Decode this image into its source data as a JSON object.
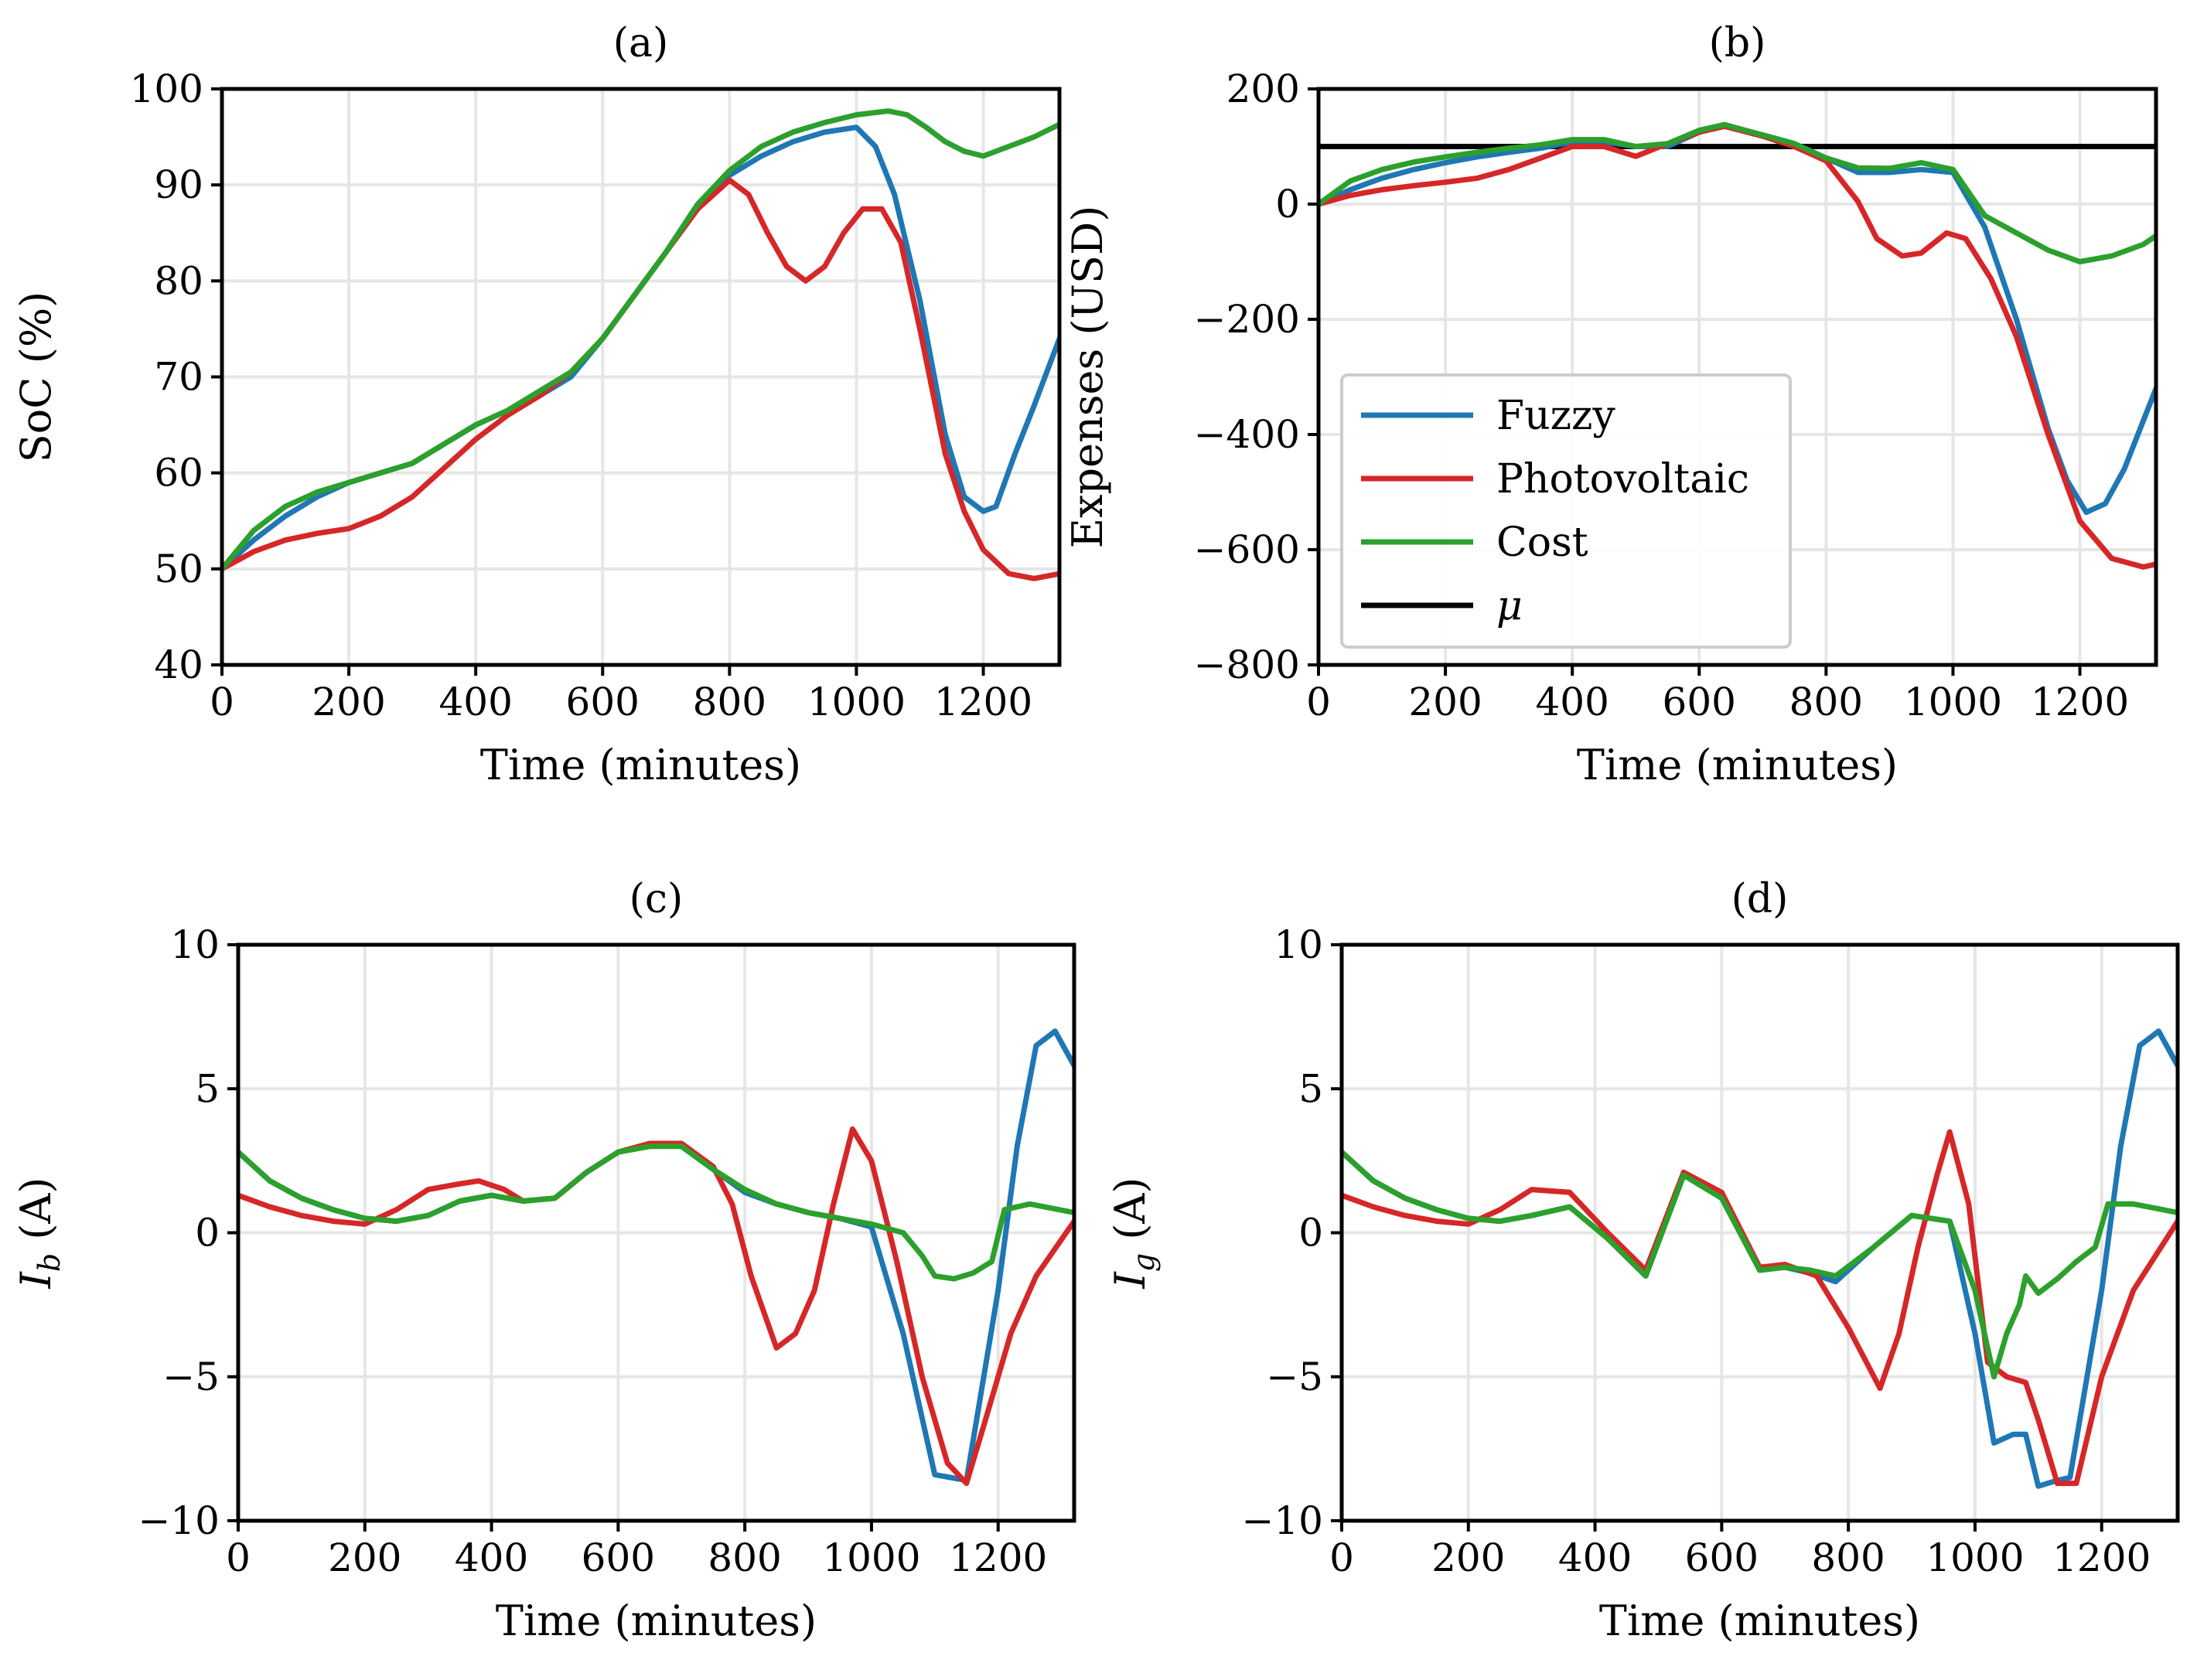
{
  "colors": {
    "fuzzy": "#1f77b4",
    "photovoltaic": "#d62728",
    "cost": "#2ca02c",
    "mu": "#000000",
    "grid": "#e6e6e6"
  },
  "chart_data": [
    {
      "id": "a",
      "type": "line",
      "title": "(a)",
      "xlabel": "Time (minutes)",
      "ylabel": "SoC (%)",
      "xlim": [
        0,
        1320
      ],
      "ylim": [
        40,
        100
      ],
      "xticks": [
        0,
        200,
        400,
        600,
        800,
        1000,
        1200
      ],
      "yticks": [
        40,
        50,
        60,
        70,
        80,
        90,
        100
      ],
      "xtick_labels": [
        "0",
        "200",
        "400",
        "600",
        "800",
        "1000",
        "1200"
      ],
      "ytick_labels": [
        "40",
        "50",
        "60",
        "70",
        "80",
        "90",
        "100"
      ],
      "grid": true,
      "series": [
        {
          "name": "Fuzzy",
          "color_key": "fuzzy",
          "x": [
            0,
            50,
            100,
            150,
            200,
            250,
            300,
            350,
            400,
            450,
            500,
            550,
            600,
            650,
            700,
            750,
            800,
            850,
            900,
            950,
            1000,
            1030,
            1060,
            1100,
            1140,
            1170,
            1200,
            1220,
            1250,
            1280,
            1320
          ],
          "y": [
            50,
            53,
            55.5,
            57.5,
            59,
            60,
            61,
            63,
            65,
            66.5,
            68,
            70,
            74,
            78.5,
            83,
            88,
            91,
            93,
            94.5,
            95.5,
            96,
            94,
            89,
            78,
            64,
            57.5,
            56,
            56.5,
            62,
            67,
            74
          ]
        },
        {
          "name": "Photovoltaic",
          "color_key": "photovoltaic",
          "x": [
            0,
            50,
            100,
            150,
            200,
            250,
            300,
            350,
            400,
            450,
            500,
            550,
            600,
            650,
            700,
            750,
            800,
            830,
            860,
            890,
            920,
            950,
            980,
            1010,
            1040,
            1070,
            1100,
            1140,
            1170,
            1200,
            1240,
            1280,
            1320
          ],
          "y": [
            50,
            51.8,
            53,
            53.7,
            54.2,
            55.5,
            57.5,
            60.5,
            63.5,
            66,
            68,
            70.5,
            74,
            78.5,
            83,
            87.5,
            90.5,
            89,
            85,
            81.5,
            80,
            81.5,
            85,
            87.5,
            87.5,
            84,
            75,
            62,
            56,
            52,
            49.5,
            49,
            49.5
          ]
        },
        {
          "name": "Cost",
          "color_key": "cost",
          "x": [
            0,
            50,
            100,
            150,
            200,
            250,
            300,
            350,
            400,
            450,
            500,
            550,
            600,
            650,
            700,
            750,
            800,
            850,
            900,
            950,
            1000,
            1050,
            1080,
            1110,
            1140,
            1170,
            1200,
            1240,
            1280,
            1320
          ],
          "y": [
            50,
            54,
            56.5,
            58,
            59,
            60,
            61,
            63,
            65,
            66.5,
            68.5,
            70.5,
            74,
            78.5,
            83,
            88,
            91.5,
            94,
            95.5,
            96.5,
            97.3,
            97.7,
            97.3,
            96,
            94.5,
            93.5,
            93,
            94,
            95,
            96.3
          ]
        }
      ]
    },
    {
      "id": "b",
      "type": "line",
      "title": "(b)",
      "xlabel": "Time (minutes)",
      "ylabel": "Expenses (USD)",
      "xlim": [
        0,
        1320
      ],
      "ylim": [
        -800,
        200
      ],
      "xticks": [
        0,
        200,
        400,
        600,
        800,
        1000,
        1200
      ],
      "yticks": [
        -800,
        -600,
        -400,
        -200,
        0,
        200
      ],
      "xtick_labels": [
        "0",
        "200",
        "400",
        "600",
        "800",
        "1000",
        "1200"
      ],
      "ytick_labels": [
        "−800",
        "−600",
        "−400",
        "−200",
        "0",
        "200"
      ],
      "grid": true,
      "legend": {
        "location": "center-left",
        "entries": [
          {
            "label": "Fuzzy",
            "color_key": "fuzzy"
          },
          {
            "label": "Photovoltaic",
            "color_key": "photovoltaic"
          },
          {
            "label": "Cost",
            "color_key": "cost"
          },
          {
            "label": "μ",
            "color_key": "mu"
          }
        ]
      },
      "hline": {
        "name": "μ",
        "y": 100,
        "color_key": "mu"
      },
      "series": [
        {
          "name": "Fuzzy",
          "color_key": "fuzzy",
          "x": [
            0,
            50,
            100,
            150,
            200,
            250,
            300,
            350,
            400,
            450,
            500,
            550,
            600,
            640,
            700,
            750,
            800,
            850,
            900,
            950,
            1000,
            1050,
            1100,
            1150,
            1180,
            1210,
            1240,
            1270,
            1320
          ],
          "y": [
            0,
            25,
            45,
            60,
            72,
            82,
            90,
            97,
            108,
            108,
            100,
            100,
            125,
            135,
            120,
            105,
            80,
            55,
            55,
            60,
            55,
            -40,
            -200,
            -390,
            -480,
            -535,
            -520,
            -460,
            -320
          ]
        },
        {
          "name": "Photovoltaic",
          "color_key": "photovoltaic",
          "x": [
            0,
            50,
            100,
            150,
            200,
            250,
            300,
            350,
            400,
            450,
            500,
            550,
            600,
            640,
            700,
            750,
            800,
            850,
            880,
            920,
            950,
            990,
            1020,
            1060,
            1100,
            1150,
            1200,
            1250,
            1300,
            1320
          ],
          "y": [
            0,
            15,
            25,
            32,
            38,
            45,
            60,
            80,
            100,
            100,
            83,
            105,
            125,
            135,
            118,
            100,
            75,
            5,
            -60,
            -90,
            -85,
            -50,
            -60,
            -130,
            -230,
            -400,
            -550,
            -615,
            -630,
            -625
          ]
        },
        {
          "name": "Cost",
          "color_key": "cost",
          "x": [
            0,
            50,
            100,
            150,
            200,
            250,
            300,
            350,
            400,
            450,
            500,
            550,
            600,
            640,
            700,
            750,
            800,
            850,
            900,
            950,
            1000,
            1050,
            1100,
            1150,
            1200,
            1250,
            1300,
            1320
          ],
          "y": [
            0,
            40,
            60,
            73,
            82,
            90,
            97,
            103,
            112,
            112,
            100,
            105,
            128,
            138,
            120,
            105,
            80,
            63,
            62,
            72,
            60,
            -20,
            -50,
            -80,
            -100,
            -90,
            -70,
            -55
          ]
        }
      ]
    },
    {
      "id": "c",
      "type": "line",
      "title": "(c)",
      "xlabel": "Time (minutes)",
      "ylabel_var": "I",
      "ylabel_sub": "b",
      "ylabel_unit": " (A)",
      "xlim": [
        0,
        1320
      ],
      "ylim": [
        -10,
        10
      ],
      "xticks": [
        0,
        200,
        400,
        600,
        800,
        1000,
        1200
      ],
      "yticks": [
        -10,
        -5,
        0,
        5,
        10
      ],
      "xtick_labels": [
        "0",
        "200",
        "400",
        "600",
        "800",
        "1000",
        "1200"
      ],
      "ytick_labels": [
        "−10",
        "−5",
        "0",
        "5",
        "10"
      ],
      "grid": true,
      "series": [
        {
          "name": "Fuzzy",
          "color_key": "fuzzy",
          "x": [
            0,
            50,
            100,
            150,
            200,
            250,
            300,
            350,
            400,
            450,
            500,
            550,
            600,
            650,
            700,
            750,
            800,
            850,
            900,
            950,
            1000,
            1050,
            1100,
            1150,
            1200,
            1230,
            1260,
            1290,
            1320
          ],
          "y": [
            2.8,
            1.8,
            1.2,
            0.8,
            0.5,
            0.4,
            0.6,
            1.1,
            1.3,
            1.1,
            1.2,
            2.1,
            2.8,
            3.1,
            3.0,
            2.2,
            1.4,
            1.0,
            0.7,
            0.5,
            0.2,
            -3.5,
            -8.4,
            -8.6,
            -2.0,
            3.0,
            6.5,
            7.0,
            5.8
          ]
        },
        {
          "name": "Photovoltaic",
          "color_key": "photovoltaic",
          "x": [
            0,
            50,
            100,
            150,
            200,
            250,
            300,
            350,
            380,
            420,
            450,
            500,
            550,
            600,
            650,
            700,
            750,
            780,
            810,
            850,
            880,
            910,
            940,
            970,
            1000,
            1040,
            1080,
            1120,
            1150,
            1180,
            1220,
            1260,
            1320
          ],
          "y": [
            1.3,
            0.9,
            0.6,
            0.4,
            0.3,
            0.8,
            1.5,
            1.7,
            1.8,
            1.5,
            1.1,
            1.2,
            2.1,
            2.8,
            3.1,
            3.1,
            2.3,
            1.0,
            -1.5,
            -4.0,
            -3.5,
            -2.0,
            1.0,
            3.6,
            2.5,
            -1.0,
            -5.0,
            -8.0,
            -8.7,
            -6.5,
            -3.5,
            -1.5,
            0.4
          ]
        },
        {
          "name": "Cost",
          "color_key": "cost",
          "x": [
            0,
            50,
            100,
            150,
            200,
            250,
            300,
            350,
            400,
            450,
            500,
            550,
            600,
            650,
            700,
            750,
            800,
            850,
            900,
            950,
            1000,
            1050,
            1080,
            1100,
            1130,
            1160,
            1190,
            1210,
            1250,
            1320
          ],
          "y": [
            2.8,
            1.8,
            1.2,
            0.8,
            0.5,
            0.4,
            0.6,
            1.1,
            1.3,
            1.1,
            1.2,
            2.1,
            2.8,
            3.0,
            3.0,
            2.2,
            1.5,
            1.0,
            0.7,
            0.5,
            0.3,
            0.0,
            -0.8,
            -1.5,
            -1.6,
            -1.4,
            -1.0,
            0.8,
            1.0,
            0.7
          ]
        }
      ]
    },
    {
      "id": "d",
      "type": "line",
      "title": "(d)",
      "xlabel": "Time (minutes)",
      "ylabel_var": "I",
      "ylabel_sub": "g",
      "ylabel_unit": " (A)",
      "xlim": [
        0,
        1320
      ],
      "ylim": [
        -10,
        10
      ],
      "xticks": [
        0,
        200,
        400,
        600,
        800,
        1000,
        1200
      ],
      "yticks": [
        -10,
        -5,
        0,
        5,
        10
      ],
      "xtick_labels": [
        "0",
        "200",
        "400",
        "600",
        "800",
        "1000",
        "1200"
      ],
      "ytick_labels": [
        "−10",
        "−5",
        "0",
        "5",
        "10"
      ],
      "grid": true,
      "series": [
        {
          "name": "Fuzzy",
          "color_key": "fuzzy",
          "x": [
            0,
            50,
            100,
            150,
            200,
            250,
            300,
            360,
            420,
            480,
            540,
            600,
            660,
            700,
            740,
            780,
            840,
            900,
            960,
            1000,
            1030,
            1060,
            1080,
            1100,
            1130,
            1150,
            1200,
            1230,
            1260,
            1290,
            1320
          ],
          "y": [
            2.8,
            1.8,
            1.2,
            0.8,
            0.5,
            0.4,
            0.6,
            0.9,
            -0.2,
            -1.5,
            2.0,
            1.2,
            -1.3,
            -1.2,
            -1.4,
            -1.7,
            -0.5,
            0.6,
            0.4,
            -3.5,
            -7.3,
            -7.0,
            -7.0,
            -8.8,
            -8.6,
            -8.5,
            -2.0,
            3.0,
            6.5,
            7.0,
            5.8
          ]
        },
        {
          "name": "Photovoltaic",
          "color_key": "photovoltaic",
          "x": [
            0,
            50,
            100,
            150,
            200,
            250,
            300,
            360,
            420,
            480,
            540,
            600,
            660,
            700,
            750,
            800,
            850,
            880,
            910,
            940,
            960,
            990,
            1020,
            1050,
            1080,
            1100,
            1130,
            1160,
            1200,
            1250,
            1320
          ],
          "y": [
            1.3,
            0.9,
            0.6,
            0.4,
            0.3,
            0.8,
            1.5,
            1.4,
            0.0,
            -1.3,
            2.1,
            1.4,
            -1.2,
            -1.1,
            -1.5,
            -3.3,
            -5.4,
            -3.5,
            -0.5,
            2.0,
            3.5,
            1.0,
            -4.5,
            -5.0,
            -5.2,
            -6.5,
            -8.7,
            -8.7,
            -5.0,
            -2.0,
            0.4
          ]
        },
        {
          "name": "Cost",
          "color_key": "cost",
          "x": [
            0,
            50,
            100,
            150,
            200,
            250,
            300,
            360,
            420,
            480,
            540,
            600,
            660,
            700,
            740,
            780,
            840,
            900,
            960,
            1000,
            1030,
            1050,
            1070,
            1080,
            1100,
            1130,
            1160,
            1190,
            1210,
            1250,
            1320
          ],
          "y": [
            2.8,
            1.8,
            1.2,
            0.8,
            0.5,
            0.4,
            0.6,
            0.9,
            -0.2,
            -1.5,
            2.0,
            1.2,
            -1.3,
            -1.2,
            -1.3,
            -1.5,
            -0.5,
            0.6,
            0.4,
            -2.0,
            -5.0,
            -3.5,
            -2.5,
            -1.5,
            -2.1,
            -1.6,
            -1.0,
            -0.5,
            1.0,
            1.0,
            0.7
          ]
        }
      ]
    }
  ]
}
